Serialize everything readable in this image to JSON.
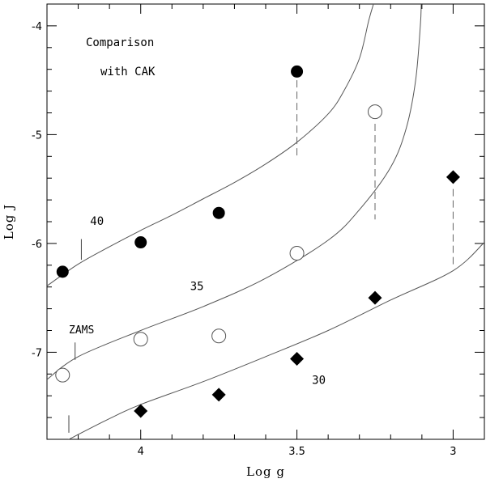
{
  "chart_data": {
    "type": "scatter",
    "title": "",
    "xlabel": "Log g",
    "ylabel": "Log J",
    "xlim": [
      4.3,
      2.9
    ],
    "ylim": [
      -7.8,
      -3.8
    ],
    "x_reversed": true,
    "xticks": [
      4,
      3.5,
      3
    ],
    "xtick_labels": [
      "4",
      "3.5",
      "3"
    ],
    "yticks": [
      -4,
      -5,
      -6,
      -7
    ],
    "ytick_labels": [
      "-4",
      "-5",
      "-6",
      "-7"
    ],
    "grid": false,
    "annotation_text": [
      "Comparison",
      "with CAK"
    ],
    "zams_label": "ZAMS",
    "series": [
      {
        "label": "40",
        "marker": "filled-circle",
        "color": "#000000",
        "points": [
          [
            4.25,
            -6.26
          ],
          [
            4.0,
            -5.99
          ],
          [
            3.75,
            -5.72
          ],
          [
            3.5,
            -4.42
          ]
        ]
      },
      {
        "label": "35",
        "marker": "open-circle",
        "color": "#000000",
        "points": [
          [
            4.25,
            -7.21
          ],
          [
            4.0,
            -6.88
          ],
          [
            3.75,
            -6.85
          ],
          [
            3.5,
            -6.09
          ],
          [
            3.25,
            -4.79
          ]
        ]
      },
      {
        "label": "30",
        "marker": "filled-diamond",
        "color": "#000000",
        "points": [
          [
            4.0,
            -7.54
          ],
          [
            3.75,
            -7.39
          ],
          [
            3.5,
            -7.06
          ],
          [
            3.25,
            -6.5
          ],
          [
            3.0,
            -5.39
          ]
        ]
      }
    ],
    "curves": [
      {
        "name": "40",
        "points": [
          [
            4.3,
            -6.39
          ],
          [
            4.2,
            -6.19
          ],
          [
            4.1,
            -6.03
          ],
          [
            4.0,
            -5.88
          ],
          [
            3.9,
            -5.74
          ],
          [
            3.8,
            -5.59
          ],
          [
            3.7,
            -5.44
          ],
          [
            3.6,
            -5.27
          ],
          [
            3.5,
            -5.07
          ],
          [
            3.4,
            -4.81
          ],
          [
            3.35,
            -4.6
          ],
          [
            3.3,
            -4.3
          ],
          [
            3.27,
            -3.95
          ],
          [
            3.255,
            -3.8
          ]
        ]
      },
      {
        "name": "35",
        "points": [
          [
            4.3,
            -7.25
          ],
          [
            4.2,
            -7.04
          ],
          [
            4.0,
            -6.8
          ],
          [
            3.8,
            -6.58
          ],
          [
            3.6,
            -6.32
          ],
          [
            3.4,
            -5.97
          ],
          [
            3.3,
            -5.69
          ],
          [
            3.2,
            -5.3
          ],
          [
            3.15,
            -4.94
          ],
          [
            3.12,
            -4.5
          ],
          [
            3.105,
            -4.0
          ],
          [
            3.102,
            -3.8
          ]
        ]
      },
      {
        "name": "30",
        "points": [
          [
            4.25,
            -7.83
          ],
          [
            4.1,
            -7.61
          ],
          [
            4.0,
            -7.48
          ],
          [
            3.8,
            -7.27
          ],
          [
            3.6,
            -7.04
          ],
          [
            3.4,
            -6.8
          ],
          [
            3.2,
            -6.52
          ],
          [
            3.0,
            -6.25
          ],
          [
            2.9,
            -5.99
          ]
        ]
      }
    ],
    "drop_lines": [
      {
        "x": 3.5,
        "y_from": -4.5,
        "y_to": -5.22
      },
      {
        "x": 3.25,
        "y_from": -4.9,
        "y_to": -5.78
      },
      {
        "x": 3.0,
        "y_from": -5.5,
        "y_to": -6.2
      }
    ],
    "label_positions_data": [
      {
        "label": "40",
        "x": 4.14,
        "y": -5.83
      },
      {
        "label": "35",
        "x": 3.82,
        "y": -6.43
      },
      {
        "label": "30",
        "x": 3.43,
        "y": -7.29
      }
    ],
    "zams_marks": [
      {
        "x": 4.19,
        "y_from": -5.96,
        "y_to": -6.15
      },
      {
        "x": 4.21,
        "y_from": -6.91,
        "y_to": -7.07
      },
      {
        "x": 4.23,
        "y_from": -7.58,
        "y_to": -7.74
      }
    ]
  }
}
